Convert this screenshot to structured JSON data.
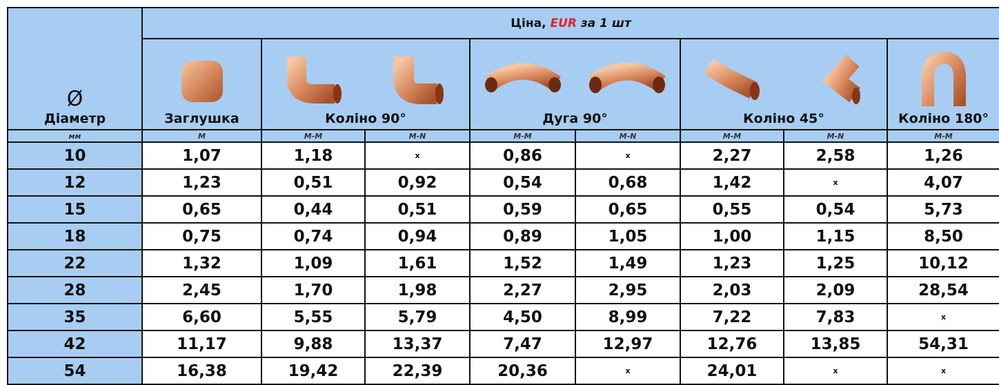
{
  "header": {
    "price_prefix": "Ціна,",
    "currency": "EUR",
    "price_suffix": "за 1 шт"
  },
  "diameter": {
    "symbol": "Ø",
    "label": "Діаметр",
    "unit": "мм"
  },
  "products": [
    {
      "name": "Заглушка",
      "variants": [
        "М"
      ]
    },
    {
      "name": "Коліно 90°",
      "variants": [
        "М-М",
        "М-N"
      ]
    },
    {
      "name": "Дуга 90°",
      "variants": [
        "М-М",
        "М-N"
      ]
    },
    {
      "name": "Коліно 45°",
      "variants": [
        "М-М",
        "М-N"
      ]
    },
    {
      "name": "Коліно 180°",
      "variants": [
        "М-М"
      ]
    }
  ],
  "rows": [
    [
      "10",
      "1,07",
      "1,18",
      "x",
      "0,86",
      "x",
      "2,27",
      "2,58",
      "1,26"
    ],
    [
      "12",
      "1,23",
      "0,51",
      "0,92",
      "0,54",
      "0,68",
      "1,42",
      "x",
      "4,07"
    ],
    [
      "15",
      "0,65",
      "0,44",
      "0,51",
      "0,59",
      "0,65",
      "0,55",
      "0,54",
      "5,73"
    ],
    [
      "18",
      "0,75",
      "0,74",
      "0,94",
      "0,89",
      "1,05",
      "1,00",
      "1,15",
      "8,50"
    ],
    [
      "22",
      "1,32",
      "1,09",
      "1,61",
      "1,52",
      "1,49",
      "1,23",
      "1,25",
      "10,12"
    ],
    [
      "28",
      "2,45",
      "1,70",
      "1,98",
      "2,27",
      "2,95",
      "2,03",
      "2,09",
      "28,54"
    ],
    [
      "35",
      "6,60",
      "5,55",
      "5,79",
      "4,50",
      "8,99",
      "7,22",
      "7,83",
      "x"
    ],
    [
      "42",
      "11,17",
      "9,88",
      "13,37",
      "7,47",
      "12,97",
      "12,76",
      "13,85",
      "54,31"
    ],
    [
      "54",
      "16,38",
      "19,42",
      "22,39",
      "20,36",
      "x",
      "24,01",
      "x",
      "x"
    ]
  ]
}
